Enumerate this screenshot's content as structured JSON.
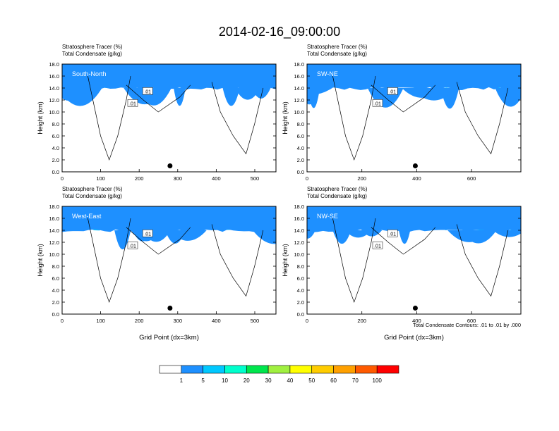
{
  "title": "2014-02-16_09:00:00",
  "panel_title_line1": "Stratosphere Tracer   (%)",
  "panel_title_line2": "Total Condensate   (g/kg)",
  "ylabel": "Height (km)",
  "xlabel": "Grid Point (dx=3km)",
  "contour_note": "Total Condensate Contours: .01 to .01 by .000",
  "contour_label": ".01",
  "colors": {
    "levels": [
      "#ffffff",
      "#1e90ff",
      "#00c8ff",
      "#00ffcc",
      "#00e64d",
      "#a0f040",
      "#ffff00",
      "#ffcc00",
      "#ffa000",
      "#ff5a00",
      "#ff0000"
    ]
  },
  "colorbar": {
    "labels": [
      "1",
      "5",
      "10",
      "20",
      "30",
      "40",
      "50",
      "60",
      "70",
      "100"
    ]
  },
  "chart_data": [
    {
      "type": "heatmap",
      "label": "South-North",
      "xlim": [
        0,
        555
      ],
      "ylim": [
        0,
        18
      ],
      "xticks": [
        0,
        100,
        200,
        300,
        400,
        500
      ],
      "yticks": [
        0.0,
        2.0,
        4.0,
        6.0,
        8.0,
        10.0,
        12.0,
        14.0,
        16.0,
        18.0
      ],
      "marker_x": 280,
      "marker_y": 1.0
    },
    {
      "type": "heatmap",
      "label": "SW-NE",
      "xlim": [
        0,
        780
      ],
      "ylim": [
        0,
        18
      ],
      "xticks": [
        0,
        200,
        400,
        600
      ],
      "yticks": [
        0.0,
        2.0,
        4.0,
        6.0,
        8.0,
        10.0,
        12.0,
        14.0,
        16.0,
        18.0
      ],
      "marker_x": 395,
      "marker_y": 1.0
    },
    {
      "type": "heatmap",
      "label": "West-East",
      "xlim": [
        0,
        555
      ],
      "ylim": [
        0,
        18
      ],
      "xticks": [
        0,
        100,
        200,
        300,
        400,
        500
      ],
      "yticks": [
        0.0,
        2.0,
        4.0,
        6.0,
        8.0,
        10.0,
        12.0,
        14.0,
        16.0,
        18.0
      ],
      "marker_x": 280,
      "marker_y": 1.0
    },
    {
      "type": "heatmap",
      "label": "NW-SE",
      "xlim": [
        0,
        780
      ],
      "ylim": [
        0,
        18
      ],
      "xticks": [
        0,
        200,
        400,
        600
      ],
      "yticks": [
        0.0,
        2.0,
        4.0,
        6.0,
        8.0,
        10.0,
        12.0,
        14.0,
        16.0,
        18.0
      ],
      "marker_x": 395,
      "marker_y": 1.0
    }
  ]
}
